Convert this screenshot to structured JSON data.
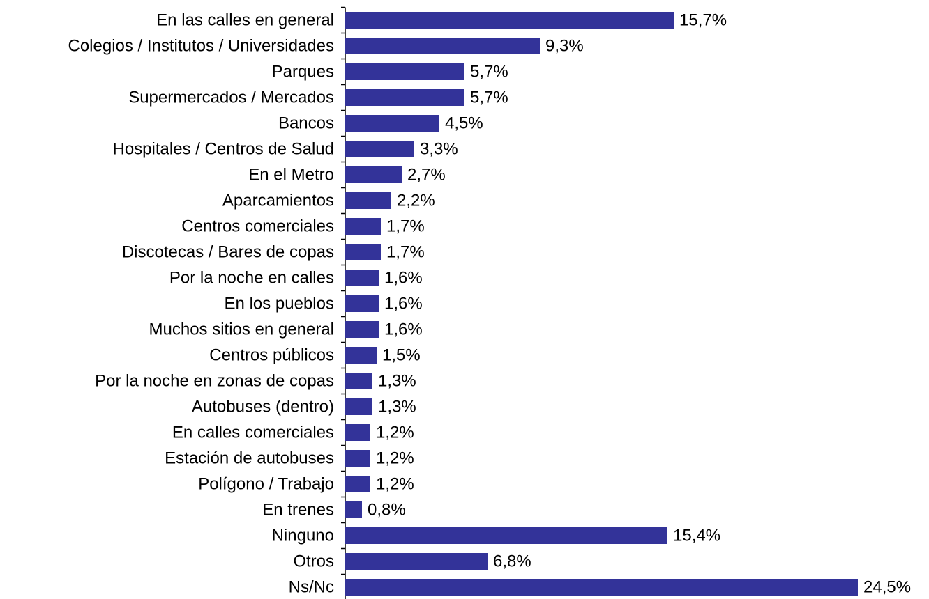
{
  "chart_data": {
    "type": "bar",
    "orientation": "horizontal",
    "color": "#333399",
    "categories": [
      "En las calles en general",
      "Colegios / Institutos / Universidades",
      "Parques",
      "Supermercados / Mercados",
      "Bancos",
      "Hospitales / Centros de Salud",
      "En el Metro",
      "Aparcamientos",
      "Centros comerciales",
      "Discotecas / Bares de copas",
      "Por la noche en calles",
      "En los pueblos",
      "Muchos sitios en general",
      "Centros públicos",
      "Por la noche en zonas de copas",
      "Autobuses (dentro)",
      "En calles comerciales",
      "Estación de autobuses",
      "Polígono / Trabajo",
      "En trenes",
      "Ninguno",
      "Otros",
      "Ns/Nc"
    ],
    "values": [
      15.7,
      9.3,
      5.7,
      5.7,
      4.5,
      3.3,
      2.7,
      2.2,
      1.7,
      1.7,
      1.6,
      1.6,
      1.6,
      1.5,
      1.3,
      1.3,
      1.2,
      1.2,
      1.2,
      0.8,
      15.4,
      6.8,
      24.5
    ],
    "value_labels": [
      "15,7%",
      "9,3%",
      "5,7%",
      "5,7%",
      "4,5%",
      "3,3%",
      "2,7%",
      "2,2%",
      "1,7%",
      "1,7%",
      "1,6%",
      "1,6%",
      "1,6%",
      "1,5%",
      "1,3%",
      "1,3%",
      "1,2%",
      "1,2%",
      "1,2%",
      "0,8%",
      "15,4%",
      "6,8%",
      "24,5%"
    ]
  }
}
